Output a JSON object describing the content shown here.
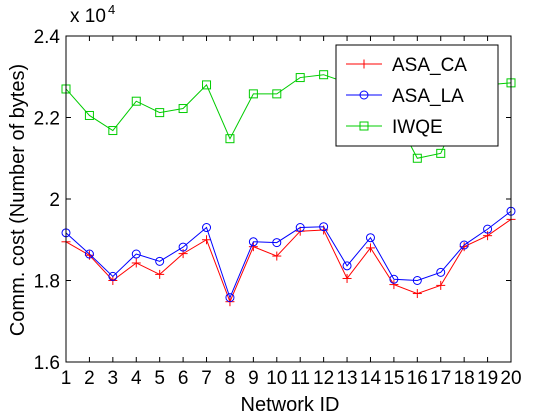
{
  "chart_data": {
    "type": "line",
    "xlabel": "Network ID",
    "ylabel": "Comm. cost (Number of bytes)",
    "y_exponent_label": "x 10",
    "y_exponent_power": "4",
    "x": [
      1,
      2,
      3,
      4,
      5,
      6,
      7,
      8,
      9,
      10,
      11,
      12,
      13,
      14,
      15,
      16,
      17,
      18,
      19,
      20
    ],
    "xticks": [
      "1",
      "2",
      "3",
      "4",
      "5",
      "6",
      "7",
      "8",
      "9",
      "10",
      "11",
      "12",
      "13",
      "14",
      "15",
      "16",
      "17",
      "18",
      "19",
      "20"
    ],
    "xlim": [
      1,
      20
    ],
    "ylim": [
      1.6,
      2.4
    ],
    "yticks": [
      1.6,
      1.8,
      2.0,
      2.2,
      2.4
    ],
    "ytick_labels": [
      "1.6",
      "1.8",
      "2",
      "2.2",
      "2.4"
    ],
    "grid": false,
    "legend_position": "top-right",
    "series": [
      {
        "name": "ASA_CA",
        "color": "#ff0000",
        "marker": "plus",
        "values": [
          1.895,
          1.862,
          1.8,
          1.843,
          1.815,
          1.866,
          1.9,
          1.748,
          1.883,
          1.86,
          1.921,
          1.924,
          1.805,
          1.88,
          1.79,
          1.768,
          1.788,
          1.883,
          1.91,
          1.95
        ]
      },
      {
        "name": "ASA_LA",
        "color": "#0000ff",
        "marker": "circle",
        "values": [
          1.917,
          1.865,
          1.81,
          1.865,
          1.847,
          1.882,
          1.93,
          1.758,
          1.895,
          1.893,
          1.93,
          1.932,
          1.836,
          1.905,
          1.803,
          1.8,
          1.82,
          1.887,
          1.926,
          1.97
        ]
      },
      {
        "name": "IWQE",
        "color": "#00cc00",
        "marker": "square",
        "values": [
          2.27,
          2.205,
          2.168,
          2.24,
          2.212,
          2.222,
          2.28,
          2.148,
          2.258,
          2.258,
          2.298,
          2.305,
          2.285,
          2.265,
          2.21,
          2.1,
          2.112,
          2.24,
          2.28,
          2.285
        ]
      }
    ]
  }
}
